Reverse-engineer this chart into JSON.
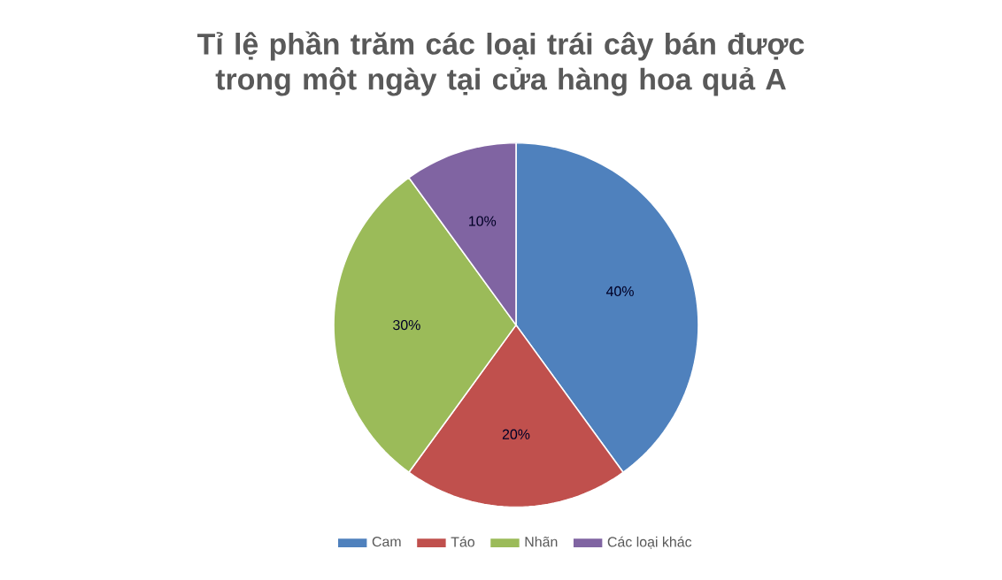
{
  "chart_data": {
    "type": "pie",
    "title": "Tỉ lệ phần trăm các loại trái cây bán được trong một ngày tại cửa hàng hoa quả A",
    "categories": [
      "Cam",
      "Táo",
      "Nhãn",
      "Các loại khác"
    ],
    "values": [
      40,
      20,
      30,
      10
    ],
    "value_labels": [
      "40%",
      "20%",
      "30%",
      "10%"
    ],
    "colors": [
      "#4f81bd",
      "#c0504d",
      "#9bbb59",
      "#8064a2"
    ],
    "legend": "bottom"
  }
}
